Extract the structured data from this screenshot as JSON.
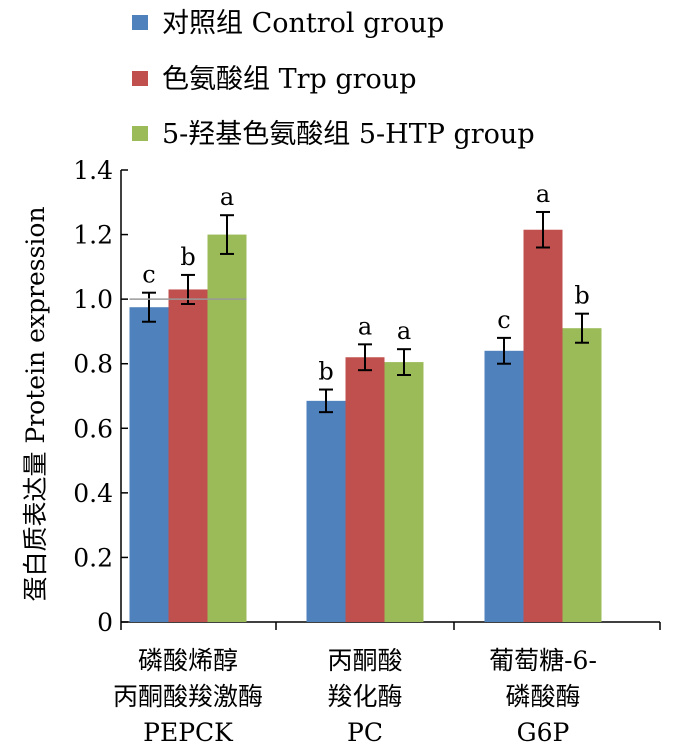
{
  "chart_data": {
    "type": "bar",
    "ylabel": "蛋白质表达量 Protein expression",
    "ylim": [
      0,
      1.4
    ],
    "yticks": [
      0,
      0.2,
      0.4,
      0.6,
      0.8,
      1.0,
      1.2,
      1.4
    ],
    "ytick_labels": [
      "0",
      "0.2",
      "0.4",
      "0.6",
      "0.8",
      "1.0",
      "1.2",
      "1.4"
    ],
    "grid": false,
    "legend_position": "top-left",
    "categories": [
      {
        "lines": [
          "磷酸烯醇",
          "丙酮酸羧激酶",
          "PEPCK"
        ]
      },
      {
        "lines": [
          "丙酮酸",
          "羧化酶",
          "PC"
        ]
      },
      {
        "lines": [
          "葡萄糖-6-",
          "磷酸酶",
          "G6P"
        ]
      }
    ],
    "series": [
      {
        "name": "对照组  Control group",
        "color": "#4f81bd",
        "values": [
          0.975,
          0.685,
          0.84
        ],
        "errors": [
          0.045,
          0.035,
          0.04
        ],
        "sig_labels": [
          "c",
          "b",
          "c"
        ]
      },
      {
        "name": "色氨酸组  Trp group",
        "color": "#c0504d",
        "values": [
          1.03,
          0.82,
          1.215
        ],
        "errors": [
          0.045,
          0.04,
          0.055
        ],
        "sig_labels": [
          "b",
          "a",
          "a"
        ]
      },
      {
        "name": "5-羟基色氨酸组  5-HTP group",
        "color": "#9bbb59",
        "values": [
          1.2,
          0.805,
          0.91
        ],
        "errors": [
          0.06,
          0.04,
          0.045
        ],
        "sig_labels": [
          "a",
          "a",
          "b"
        ]
      }
    ],
    "reference_line": {
      "y": 1.0,
      "group": 0
    }
  }
}
